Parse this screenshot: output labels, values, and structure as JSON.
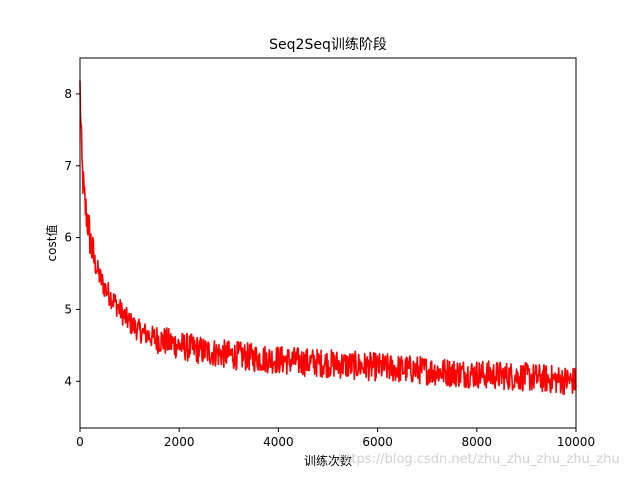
{
  "chart_data": {
    "type": "line",
    "title": "Seq2Seq训练阶段",
    "xlabel": "训练次数",
    "ylabel": "cost值",
    "xlim": [
      0,
      10000
    ],
    "ylim": [
      3.35,
      8.5
    ],
    "xticks": [
      0,
      2000,
      4000,
      6000,
      8000,
      10000
    ],
    "yticks": [
      4,
      5,
      6,
      7,
      8
    ],
    "grid": false,
    "series": [
      {
        "color": "#ff0000",
        "x": [
          0,
          20,
          40,
          60,
          80,
          100,
          150,
          200,
          250,
          300,
          400,
          500,
          600,
          700,
          800,
          900,
          1000,
          1200,
          1500,
          2000,
          2500,
          3000,
          3500,
          4000,
          4500,
          5000,
          5500,
          6000,
          6500,
          7000,
          7500,
          8000,
          8500,
          9000,
          9500,
          10000
        ],
        "values": [
          8.1,
          7.5,
          7.0,
          6.8,
          6.6,
          6.45,
          6.25,
          6.0,
          5.8,
          5.65,
          5.45,
          5.3,
          5.2,
          5.1,
          5.0,
          4.9,
          4.82,
          4.7,
          4.6,
          4.5,
          4.42,
          4.37,
          4.33,
          4.3,
          4.27,
          4.25,
          4.22,
          4.2,
          4.17,
          4.15,
          4.12,
          4.1,
          4.08,
          4.06,
          4.03,
          4.0
        ]
      }
    ]
  },
  "watermark": "https://blog.csdn.net/zhu_zhu_zhu_zhu_zhu"
}
